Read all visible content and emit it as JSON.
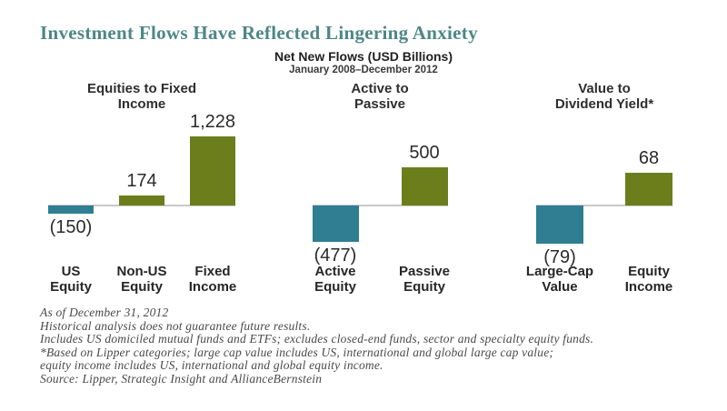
{
  "title": {
    "text": "Investment Flows Have Reflected Lingering Anxiety"
  },
  "subtitle": {
    "line1": "Net New Flows (USD Billions)",
    "line2": "January 2008–December 2012"
  },
  "chart_data": {
    "type": "bar",
    "title": "Net New Flows (USD Billions)",
    "period": "January 2008–December 2012",
    "unit": "USD billions",
    "legend": "none",
    "grid": false,
    "colors": {
      "positive_bar": "#6c7e1c",
      "negative_bar": "#2f7e91",
      "baseline": "#c9c9c9"
    },
    "groups": [
      {
        "heading": "Equities to Fixed\nIncome",
        "bars": [
          {
            "category": "US\nEquity",
            "value": -150,
            "label": "(150)"
          },
          {
            "category": "Non-US\nEquity",
            "value": 174,
            "label": "174"
          },
          {
            "category": "Fixed\nIncome",
            "value": 1228,
            "label": "1,228"
          }
        ]
      },
      {
        "heading": "Active to\nPassive",
        "bars": [
          {
            "category": "Active\nEquity",
            "value": -477,
            "label": "(477)"
          },
          {
            "category": "Passive\nEquity",
            "value": 500,
            "label": "500"
          }
        ]
      },
      {
        "heading": "Value to\nDividend Yield*",
        "bars": [
          {
            "category": "Large-Cap\nValue",
            "value": -79,
            "label": "(79)"
          },
          {
            "category": "Equity\nIncome",
            "value": 68,
            "label": "68"
          }
        ]
      }
    ]
  },
  "footnotes": [
    "As of December 31, 2012",
    "Historical analysis does not guarantee future results.",
    "Includes US domiciled mutual funds and ETFs; excludes closed-end funds, sector and specialty equity funds.",
    "*Based on Lipper categories; large cap value includes US, international and global large cap value;",
    "equity income includes US, international and global equity income.",
    "Source: Lipper, Strategic Insight and AllianceBernstein"
  ]
}
